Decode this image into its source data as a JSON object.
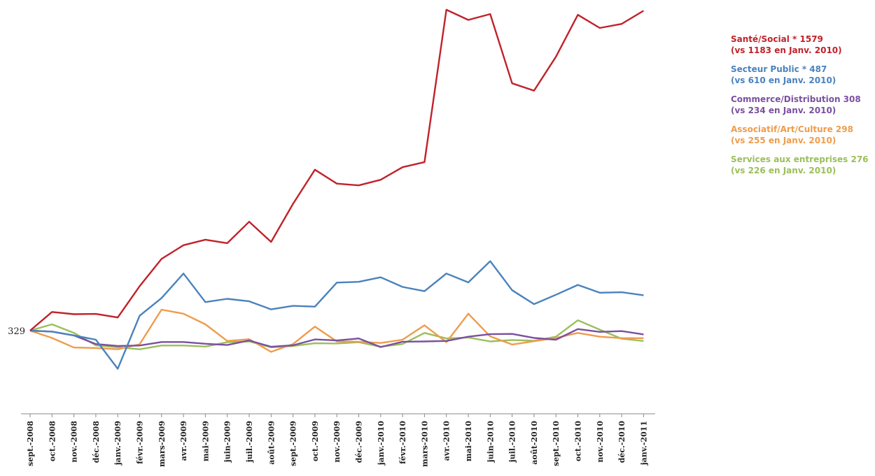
{
  "chart_data": {
    "type": "line",
    "title": "",
    "xlabel": "",
    "ylabel": "",
    "grid": false,
    "legend_position": "right",
    "start_value_label": "329",
    "categories": [
      "sept.-2008",
      "oct.-2008",
      "nov.-2008",
      "déc.-2008",
      "janv.-2009",
      "févr.-2009",
      "mars-2009",
      "avr.-2009",
      "mai-2009",
      "juin-2009",
      "juil.-2009",
      "août-2009",
      "sept.-2009",
      "oct.-2009",
      "nov.-2009",
      "déc.-2009",
      "janv.-2010",
      "févr.-2010",
      "mars-2010",
      "avr.-2010",
      "mai-2010",
      "juin-2010",
      "juil.-2010",
      "août-2010",
      "sept.-2010",
      "oct.-2010",
      "nov.-2010",
      "déc.-2010",
      "janv.-2011"
    ],
    "series": [
      {
        "key": "sante",
        "color": "#c0222a",
        "legend_line1": "Santé/Social * 1579",
        "legend_line2": "(vs 1183 en Janv. 2010)",
        "values": [
          329,
          403,
          394,
          395,
          381,
          505,
          613,
          667,
          689,
          675,
          760,
          680,
          831,
          966,
          911,
          904,
          926,
          976,
          996,
          1599,
          1559,
          1582,
          1308,
          1279,
          1413,
          1579,
          1527,
          1543,
          1595
        ]
      },
      {
        "key": "public",
        "color": "#4a82bd",
        "legend_line1": "Secteur Public * 487",
        "legend_line2": "(vs 610 en Janv. 2010)",
        "values": [
          329,
          325,
          310,
          293,
          178,
          388,
          458,
          555,
          442,
          455,
          445,
          413,
          427,
          424,
          519,
          522,
          540,
          502,
          485,
          555,
          520,
          604,
          489,
          434,
          471,
          510,
          479,
          481,
          469
        ]
      },
      {
        "key": "commerce",
        "color": "#7a50a0",
        "legend_line1": "Commerce/Distribution 308",
        "legend_line2": "(vs 234 en Janv. 2010)",
        "values": [
          329,
          325,
          310,
          276,
          268,
          270,
          284,
          284,
          277,
          272,
          290,
          265,
          271,
          294,
          290,
          298,
          264,
          285,
          286,
          288,
          305,
          315,
          316,
          300,
          293,
          335,
          324,
          327,
          314
        ]
      },
      {
        "key": "asso",
        "color": "#ee9c4c",
        "legend_line1": "Associatif/Art/Culture 298",
        "legend_line2": "(vs 255 en Janv. 2010)",
        "values": [
          329,
          300,
          262,
          260,
          255,
          275,
          412,
          396,
          354,
          288,
          295,
          245,
          276,
          345,
          286,
          285,
          280,
          293,
          350,
          283,
          396,
          306,
          274,
          287,
          300,
          320,
          305,
          299,
          299
        ]
      },
      {
        "key": "services",
        "color": "#9bbf59",
        "legend_line1": "Services aux entreprises 276",
        "legend_line2": "(vs 226 en Janv. 2010)",
        "values": [
          329,
          354,
          320,
          271,
          263,
          255,
          270,
          270,
          266,
          283,
          286,
          263,
          268,
          279,
          278,
          283,
          265,
          276,
          320,
          298,
          302,
          286,
          292,
          289,
          305,
          370,
          333,
          297,
          288
        ]
      }
    ]
  }
}
